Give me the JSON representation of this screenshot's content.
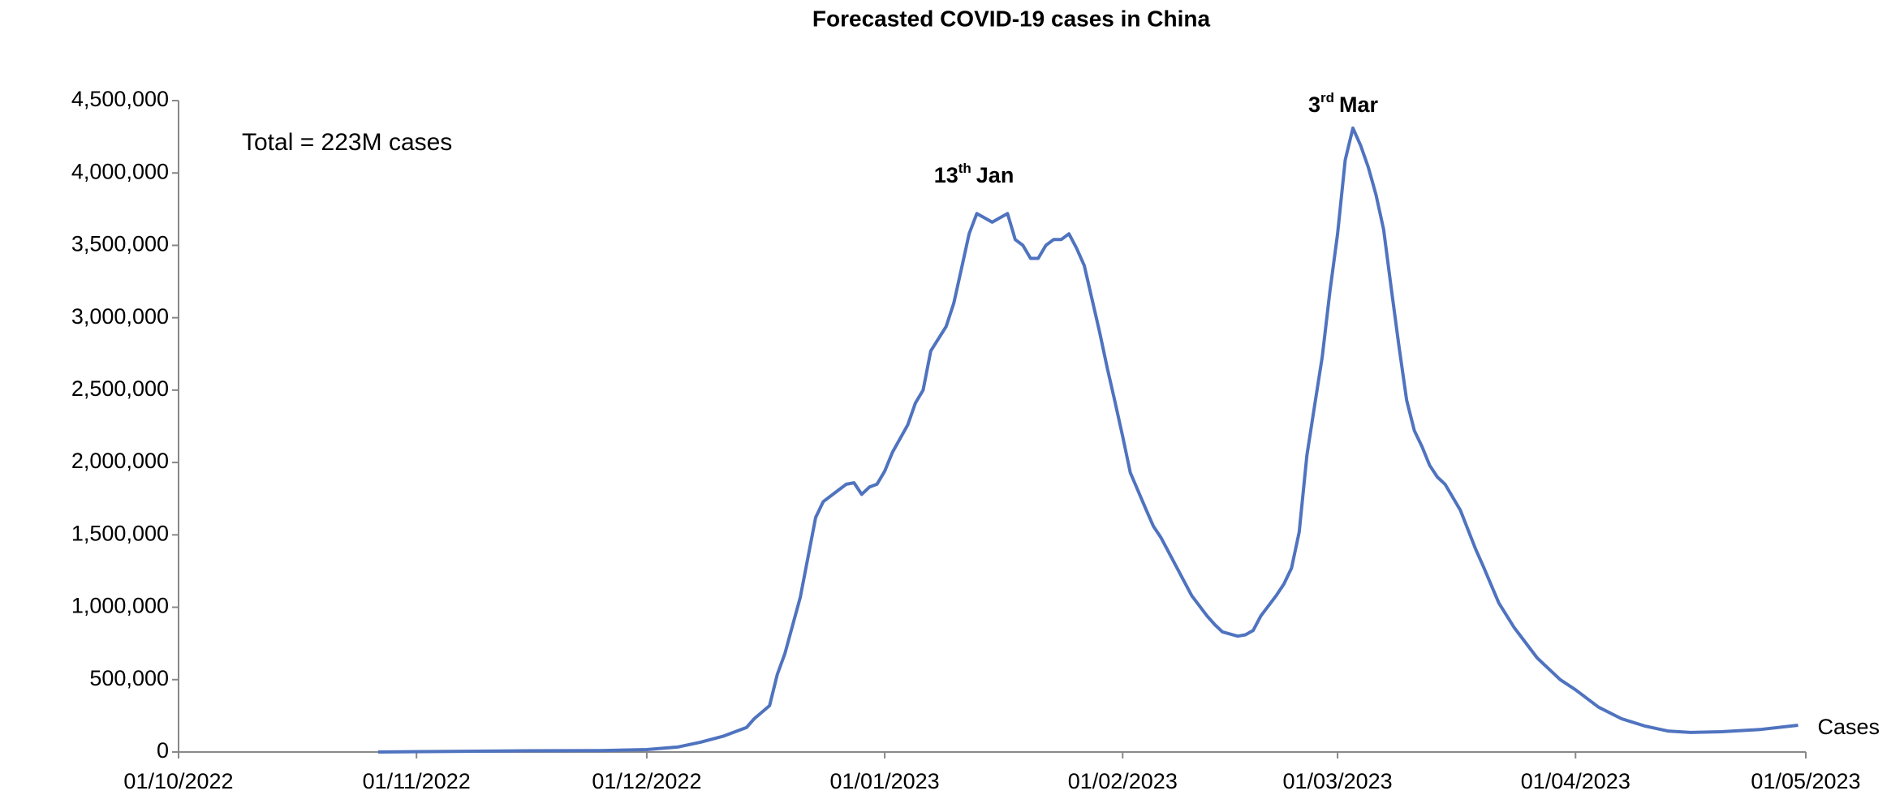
{
  "chart_data": {
    "type": "line",
    "title": "Forecasted COVID-19 cases in China",
    "annotations": [
      {
        "day": "13",
        "suffix": "th",
        "month": "Jan"
      },
      {
        "day": "3",
        "suffix": "rd",
        "month": "Mar"
      }
    ],
    "note": "Total = 223M cases",
    "x": [
      "27/10/2022",
      "15/11/2022",
      "25/11/2022",
      "01/12/2022",
      "05/12/2022",
      "08/12/2022",
      "11/12/2022",
      "14/12/2022",
      "15/12/2022",
      "17/12/2022",
      "18/12/2022",
      "19/12/2022",
      "21/12/2022",
      "23/12/2022",
      "24/12/2022",
      "26/12/2022",
      "27/12/2022",
      "28/12/2022",
      "29/12/2022",
      "30/12/2022",
      "31/12/2022",
      "01/01/2023",
      "02/01/2023",
      "04/01/2023",
      "05/01/2023",
      "06/01/2023",
      "07/01/2023",
      "09/01/2023",
      "10/01/2023",
      "11/01/2023",
      "12/01/2023",
      "13/01/2023",
      "14/01/2023",
      "15/01/2023",
      "16/01/2023",
      "17/01/2023",
      "18/01/2023",
      "19/01/2023",
      "20/01/2023",
      "21/01/2023",
      "22/01/2023",
      "23/01/2023",
      "24/01/2023",
      "25/01/2023",
      "26/01/2023",
      "27/01/2023",
      "29/01/2023",
      "30/01/2023",
      "31/01/2023",
      "01/02/2023",
      "02/02/2023",
      "04/02/2023",
      "05/02/2023",
      "06/02/2023",
      "07/02/2023",
      "09/02/2023",
      "10/02/2023",
      "12/02/2023",
      "13/02/2023",
      "14/02/2023",
      "16/02/2023",
      "17/02/2023",
      "18/02/2023",
      "19/02/2023",
      "21/02/2023",
      "22/02/2023",
      "23/02/2023",
      "24/02/2023",
      "25/02/2023",
      "26/02/2023",
      "27/02/2023",
      "28/02/2023",
      "01/03/2023",
      "02/03/2023",
      "03/03/2023",
      "04/03/2023",
      "05/03/2023",
      "06/03/2023",
      "07/03/2023",
      "08/03/2023",
      "09/03/2023",
      "10/03/2023",
      "11/03/2023",
      "12/03/2023",
      "13/03/2023",
      "14/03/2023",
      "15/03/2023",
      "17/03/2023",
      "19/03/2023",
      "20/03/2023",
      "22/03/2023",
      "24/03/2023",
      "27/03/2023",
      "30/03/2023",
      "01/04/2023",
      "04/04/2023",
      "07/04/2023",
      "10/04/2023",
      "13/04/2023",
      "16/04/2023",
      "20/04/2023",
      "25/04/2023",
      "30/04/2023"
    ],
    "series": [
      {
        "name": "Cases",
        "color": "#4f73bf",
        "values": [
          0,
          8500,
          10000,
          17000,
          34000,
          68000,
          110000,
          170000,
          230000,
          320000,
          535000,
          680000,
          1070000,
          1620000,
          1730000,
          1810000,
          1850000,
          1860000,
          1780000,
          1830000,
          1850000,
          1940000,
          2070000,
          2260000,
          2410000,
          2500000,
          2770000,
          2940000,
          3100000,
          3340000,
          3580000,
          3720000,
          3690000,
          3660000,
          3690000,
          3720000,
          3540000,
          3500000,
          3410000,
          3410000,
          3500000,
          3540000,
          3540000,
          3580000,
          3480000,
          3360000,
          2900000,
          2650000,
          2420000,
          2180000,
          1930000,
          1680000,
          1560000,
          1480000,
          1380000,
          1180000,
          1080000,
          940000,
          880000,
          830000,
          800000,
          810000,
          840000,
          940000,
          1080000,
          1160000,
          1270000,
          1520000,
          2050000,
          2390000,
          2730000,
          3180000,
          3580000,
          4090000,
          4310000,
          4190000,
          4040000,
          3850000,
          3610000,
          3200000,
          2800000,
          2430000,
          2220000,
          2110000,
          1980000,
          1900000,
          1850000,
          1670000,
          1400000,
          1280000,
          1030000,
          860000,
          650000,
          500000,
          430000,
          310000,
          230000,
          180000,
          145000,
          135000,
          140000,
          155000,
          185000
        ]
      }
    ],
    "xlim": [
      "01/10/2022",
      "01/05/2023"
    ],
    "xticks": [
      "01/10/2022",
      "01/11/2022",
      "01/12/2022",
      "01/01/2023",
      "01/02/2023",
      "01/03/2023",
      "01/04/2023",
      "01/05/2023"
    ],
    "ylim": [
      0,
      4500000
    ],
    "yticks": [
      0,
      {
        "value": 500000,
        "label": "500,000"
      },
      {
        "value": 1000000,
        "label": "1,000,000"
      },
      {
        "value": 1500000,
        "label": "1,500,000"
      },
      {
        "value": 2000000,
        "label": "2,000,000"
      },
      {
        "value": 2500000,
        "label": "2,500,000"
      },
      {
        "value": 3000000,
        "label": "3,000,000"
      },
      {
        "value": 3500000,
        "label": "3,500,000"
      },
      {
        "value": 4000000,
        "label": "4,000,000"
      },
      {
        "value": 4500000,
        "label": "4,500,000"
      }
    ],
    "grid": false
  }
}
